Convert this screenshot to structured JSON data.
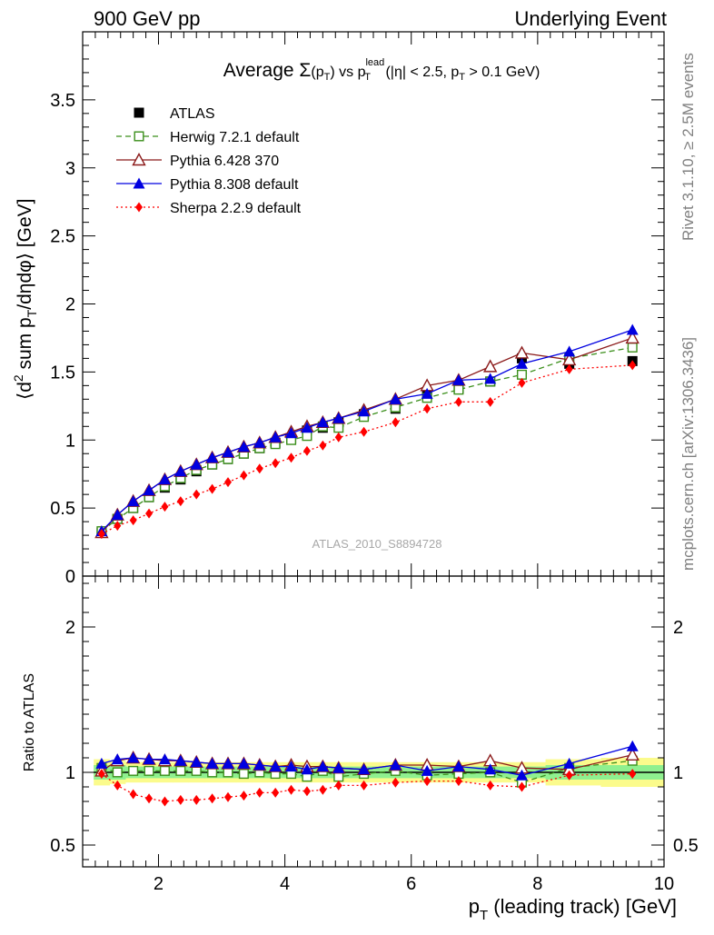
{
  "header": {
    "left": "900 GeV pp",
    "right": "Underlying Event"
  },
  "side_labels": {
    "rivet": "Rivet 3.1.10, ≥ 2.5M events",
    "mcplots": "mcplots.cern.ch [arXiv:1306.3436]"
  },
  "chart_data": [
    {
      "type": "scatter",
      "panel": "main",
      "title_parts": {
        "prefix": "Average ",
        "sigma": "Σ",
        "pt_open": "(p",
        "pt_sub": "T",
        "pt_close": ")",
        "vs": " vs p",
        "lead_sup": "lead",
        "lead_sub": "T",
        "range_a": " (|η| < 2.5, p",
        "range_sub": "T",
        "range_b": " > 0.1 GeV)"
      },
      "ylabel_parts": {
        "a": "⟨d",
        "sup": "2",
        "b": " sum p",
        "sub": "T",
        "c": "/dηdφ⟩ [GeV]"
      },
      "watermark": "ATLAS_2010_S8894728",
      "xlim": [
        0.8,
        10.0
      ],
      "ylim": [
        0.0,
        4.0
      ],
      "yticks": [
        "0",
        "0.5",
        "1",
        "1.5",
        "2",
        "2.5",
        "3",
        "3.5"
      ],
      "legend_position": "top-left",
      "x": [
        1.1,
        1.35,
        1.6,
        1.85,
        2.1,
        2.35,
        2.6,
        2.85,
        3.1,
        3.35,
        3.6,
        3.85,
        4.1,
        4.35,
        4.6,
        4.85,
        5.25,
        5.75,
        6.25,
        6.75,
        7.25,
        7.75,
        8.5,
        9.5
      ],
      "series": [
        {
          "name": "ATLAS",
          "color": "#000000",
          "marker": "square-filled",
          "line": "none",
          "values": [
            0.32,
            0.42,
            0.5,
            0.58,
            0.65,
            0.71,
            0.77,
            0.82,
            0.86,
            0.9,
            0.94,
            0.98,
            1.01,
            1.07,
            1.09,
            1.13,
            1.19,
            1.23,
            1.33,
            1.38,
            1.43,
            1.6,
            1.56,
            1.58
          ]
        },
        {
          "name": "Herwig 7.2.1 default",
          "color": "#3b8f1b",
          "marker": "square-open",
          "line": "dashed",
          "values": [
            0.33,
            0.42,
            0.5,
            0.58,
            0.66,
            0.72,
            0.78,
            0.82,
            0.86,
            0.9,
            0.94,
            0.97,
            1.0,
            1.03,
            1.1,
            1.09,
            1.17,
            1.24,
            1.31,
            1.37,
            1.43,
            1.48,
            1.6,
            1.68
          ]
        },
        {
          "name": "Pythia 6.428 370",
          "color": "#8b1a1a",
          "marker": "triangle-open",
          "line": "solid",
          "values": [
            0.32,
            0.45,
            0.55,
            0.63,
            0.71,
            0.77,
            0.82,
            0.87,
            0.91,
            0.95,
            0.98,
            1.02,
            1.06,
            1.1,
            1.13,
            1.16,
            1.22,
            1.3,
            1.4,
            1.44,
            1.54,
            1.64,
            1.59,
            1.75
          ]
        },
        {
          "name": "Pythia 8.308 default",
          "color": "#0000e0",
          "marker": "triangle-filled",
          "line": "solid",
          "values": [
            0.33,
            0.45,
            0.55,
            0.63,
            0.71,
            0.77,
            0.82,
            0.87,
            0.91,
            0.95,
            0.98,
            1.02,
            1.05,
            1.09,
            1.13,
            1.16,
            1.21,
            1.3,
            1.34,
            1.44,
            1.45,
            1.56,
            1.65,
            1.81
          ]
        },
        {
          "name": "Sherpa 2.2.9 default",
          "color": "#ff0000",
          "marker": "diamond-filled",
          "line": "dotted",
          "values": [
            0.31,
            0.37,
            0.41,
            0.46,
            0.51,
            0.55,
            0.6,
            0.64,
            0.69,
            0.74,
            0.79,
            0.83,
            0.87,
            0.92,
            0.96,
            1.02,
            1.06,
            1.13,
            1.23,
            1.28,
            1.28,
            1.42,
            1.52,
            1.55
          ]
        }
      ]
    },
    {
      "type": "scatter",
      "panel": "ratio",
      "ylabel": "Ratio to ATLAS",
      "xlabel_parts": {
        "a": "p",
        "sub": "T",
        "b": " (leading track) [GeV]"
      },
      "xlim": [
        0.8,
        10.0
      ],
      "ylim": [
        0.35,
        2.35
      ],
      "yticks": [
        "0.5",
        "1",
        "2"
      ],
      "xticks": [
        "2",
        "4",
        "6",
        "8",
        "10"
      ],
      "band_inner_halfwidth": [
        0.05,
        0.05,
        0.04,
        0.04,
        0.04,
        0.04,
        0.04,
        0.04,
        0.04,
        0.04,
        0.04,
        0.04,
        0.04,
        0.04,
        0.04,
        0.04,
        0.04,
        0.04,
        0.04,
        0.04,
        0.04,
        0.04,
        0.05,
        0.05
      ],
      "band_outer_halfwidth": [
        0.09,
        0.08,
        0.07,
        0.07,
        0.07,
        0.07,
        0.07,
        0.07,
        0.07,
        0.07,
        0.07,
        0.07,
        0.07,
        0.07,
        0.07,
        0.07,
        0.07,
        0.07,
        0.07,
        0.07,
        0.07,
        0.07,
        0.09,
        0.1
      ],
      "band_colors": {
        "inner": "#8ff08f",
        "outer": "#fbfb8c"
      },
      "series": [
        {
          "name": "Herwig 7.2.1 default",
          "values": [
            1.03,
            1.0,
            1.01,
            1.01,
            1.01,
            1.01,
            1.01,
            1.0,
            1.0,
            0.99,
            1.0,
            0.99,
            0.99,
            0.97,
            1.01,
            0.97,
            0.99,
            1.01,
            0.98,
            0.99,
            1.0,
            0.93,
            1.03,
            1.08
          ]
        },
        {
          "name": "Pythia 6.428 370",
          "values": [
            1.01,
            1.08,
            1.1,
            1.09,
            1.08,
            1.08,
            1.07,
            1.06,
            1.06,
            1.06,
            1.05,
            1.04,
            1.05,
            1.04,
            1.04,
            1.03,
            1.02,
            1.05,
            1.05,
            1.04,
            1.08,
            1.03,
            1.02,
            1.12
          ]
        },
        {
          "name": "Pythia 8.308 default",
          "values": [
            1.06,
            1.09,
            1.1,
            1.09,
            1.09,
            1.08,
            1.07,
            1.06,
            1.06,
            1.06,
            1.05,
            1.04,
            1.04,
            1.02,
            1.04,
            1.03,
            1.02,
            1.05,
            1.01,
            1.04,
            1.02,
            0.98,
            1.06,
            1.18
          ]
        },
        {
          "name": "Sherpa 2.2.9 default",
          "values": [
            0.99,
            0.91,
            0.85,
            0.82,
            0.8,
            0.81,
            0.81,
            0.82,
            0.83,
            0.84,
            0.86,
            0.86,
            0.88,
            0.87,
            0.88,
            0.91,
            0.91,
            0.93,
            0.94,
            0.94,
            0.91,
            0.9,
            0.98,
            0.99
          ]
        }
      ]
    }
  ]
}
